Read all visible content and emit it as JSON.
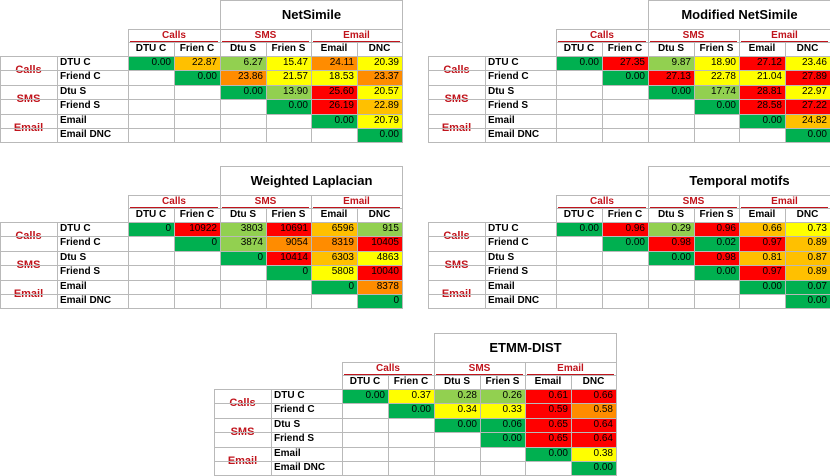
{
  "groups": [
    "Calls",
    "SMS",
    "Email"
  ],
  "columns": [
    "DTU C",
    "Frien C",
    "Dtu S",
    "Frien S",
    "Email",
    "DNC"
  ],
  "rows": [
    "DTU C",
    "Friend C",
    "Dtu S",
    "Friend S",
    "Email",
    "Email DNC"
  ],
  "palette": {
    "green": "#00b050",
    "lightgreen": "#92d050",
    "yellow": "#ffff00",
    "orange": "#ffc000",
    "darkorange": "#ff8c00",
    "red": "#ff0000"
  },
  "matrices": [
    {
      "title": "NetSimile",
      "values": [
        [
          "0.00",
          "22.87",
          "6.27",
          "15.47",
          "24.11",
          "20.39"
        ],
        [
          "",
          "0.00",
          "23.86",
          "21.57",
          "18.53",
          "23.37"
        ],
        [
          "",
          "",
          "0.00",
          "13.90",
          "25.60",
          "20.57"
        ],
        [
          "",
          "",
          "",
          "0.00",
          "26.19",
          "22.89"
        ],
        [
          "",
          "",
          "",
          "",
          "0.00",
          "20.79"
        ],
        [
          "",
          "",
          "",
          "",
          "",
          "0.00"
        ]
      ],
      "colors": [
        [
          "green",
          "orange",
          "lightgreen",
          "yellow",
          "darkorange",
          "yellow"
        ],
        [
          "",
          "green",
          "darkorange",
          "yellow",
          "yellow",
          "darkorange"
        ],
        [
          "",
          "",
          "green",
          "lightgreen",
          "red",
          "yellow"
        ],
        [
          "",
          "",
          "",
          "green",
          "red",
          "orange"
        ],
        [
          "",
          "",
          "",
          "",
          "green",
          "yellow"
        ],
        [
          "",
          "",
          "",
          "",
          "",
          "green"
        ]
      ]
    },
    {
      "title": "Modified NetSimile",
      "values": [
        [
          "0.00",
          "27.35",
          "9.87",
          "18.90",
          "27.12",
          "23.46"
        ],
        [
          "",
          "0.00",
          "27.13",
          "22.78",
          "21.04",
          "27.89"
        ],
        [
          "",
          "",
          "0.00",
          "17.74",
          "28.81",
          "22.97"
        ],
        [
          "",
          "",
          "",
          "0.00",
          "28.58",
          "27.22"
        ],
        [
          "",
          "",
          "",
          "",
          "0.00",
          "24.82"
        ],
        [
          "",
          "",
          "",
          "",
          "",
          "0.00"
        ]
      ],
      "colors": [
        [
          "green",
          "red",
          "lightgreen",
          "yellow",
          "red",
          "yellow"
        ],
        [
          "",
          "green",
          "red",
          "yellow",
          "yellow",
          "red"
        ],
        [
          "",
          "",
          "green",
          "lightgreen",
          "red",
          "yellow"
        ],
        [
          "",
          "",
          "",
          "green",
          "red",
          "red"
        ],
        [
          "",
          "",
          "",
          "",
          "green",
          "orange"
        ],
        [
          "",
          "",
          "",
          "",
          "",
          "green"
        ]
      ]
    },
    {
      "title": "Weighted Laplacian",
      "values": [
        [
          "0",
          "10922",
          "3803",
          "10691",
          "6596",
          "915"
        ],
        [
          "",
          "0",
          "3874",
          "9054",
          "8319",
          "10405"
        ],
        [
          "",
          "",
          "0",
          "10414",
          "6303",
          "4863"
        ],
        [
          "",
          "",
          "",
          "0",
          "5808",
          "10040"
        ],
        [
          "",
          "",
          "",
          "",
          "0",
          "8378"
        ],
        [
          "",
          "",
          "",
          "",
          "",
          "0"
        ]
      ],
      "colors": [
        [
          "green",
          "red",
          "lightgreen",
          "red",
          "orange",
          "lightgreen"
        ],
        [
          "",
          "green",
          "lightgreen",
          "darkorange",
          "darkorange",
          "red"
        ],
        [
          "",
          "",
          "green",
          "red",
          "orange",
          "yellow"
        ],
        [
          "",
          "",
          "",
          "green",
          "yellow",
          "red"
        ],
        [
          "",
          "",
          "",
          "",
          "green",
          "darkorange"
        ],
        [
          "",
          "",
          "",
          "",
          "",
          "green"
        ]
      ]
    },
    {
      "title": "Temporal motifs",
      "values": [
        [
          "0.00",
          "0.96",
          "0.29",
          "0.96",
          "0.66",
          "0.73"
        ],
        [
          "",
          "0.00",
          "0.98",
          "0.02",
          "0.97",
          "0.89"
        ],
        [
          "",
          "",
          "0.00",
          "0.98",
          "0.81",
          "0.87"
        ],
        [
          "",
          "",
          "",
          "0.00",
          "0.97",
          "0.89"
        ],
        [
          "",
          "",
          "",
          "",
          "0.00",
          "0.07"
        ],
        [
          "",
          "",
          "",
          "",
          "",
          "0.00"
        ]
      ],
      "colors": [
        [
          "green",
          "red",
          "lightgreen",
          "red",
          "orange",
          "yellow"
        ],
        [
          "",
          "green",
          "red",
          "green",
          "red",
          "orange"
        ],
        [
          "",
          "",
          "green",
          "red",
          "orange",
          "orange"
        ],
        [
          "",
          "",
          "",
          "green",
          "red",
          "orange"
        ],
        [
          "",
          "",
          "",
          "",
          "green",
          "green"
        ],
        [
          "",
          "",
          "",
          "",
          "",
          "green"
        ]
      ]
    },
    {
      "title": "ETMM-DIST",
      "values": [
        [
          "0.00",
          "0.37",
          "0.28",
          "0.26",
          "0.61",
          "0.66"
        ],
        [
          "",
          "0.00",
          "0.34",
          "0.33",
          "0.59",
          "0.58"
        ],
        [
          "",
          "",
          "0.00",
          "0.06",
          "0.65",
          "0.64"
        ],
        [
          "",
          "",
          "",
          "0.00",
          "0.65",
          "0.64"
        ],
        [
          "",
          "",
          "",
          "",
          "0.00",
          "0.38"
        ],
        [
          "",
          "",
          "",
          "",
          "",
          "0.00"
        ]
      ],
      "colors": [
        [
          "green",
          "yellow",
          "lightgreen",
          "lightgreen",
          "red",
          "red"
        ],
        [
          "",
          "green",
          "yellow",
          "yellow",
          "red",
          "darkorange"
        ],
        [
          "",
          "",
          "green",
          "green",
          "red",
          "red"
        ],
        [
          "",
          "",
          "",
          "green",
          "red",
          "red"
        ],
        [
          "",
          "",
          "",
          "",
          "green",
          "yellow"
        ],
        [
          "",
          "",
          "",
          "",
          "",
          "green"
        ]
      ]
    }
  ]
}
